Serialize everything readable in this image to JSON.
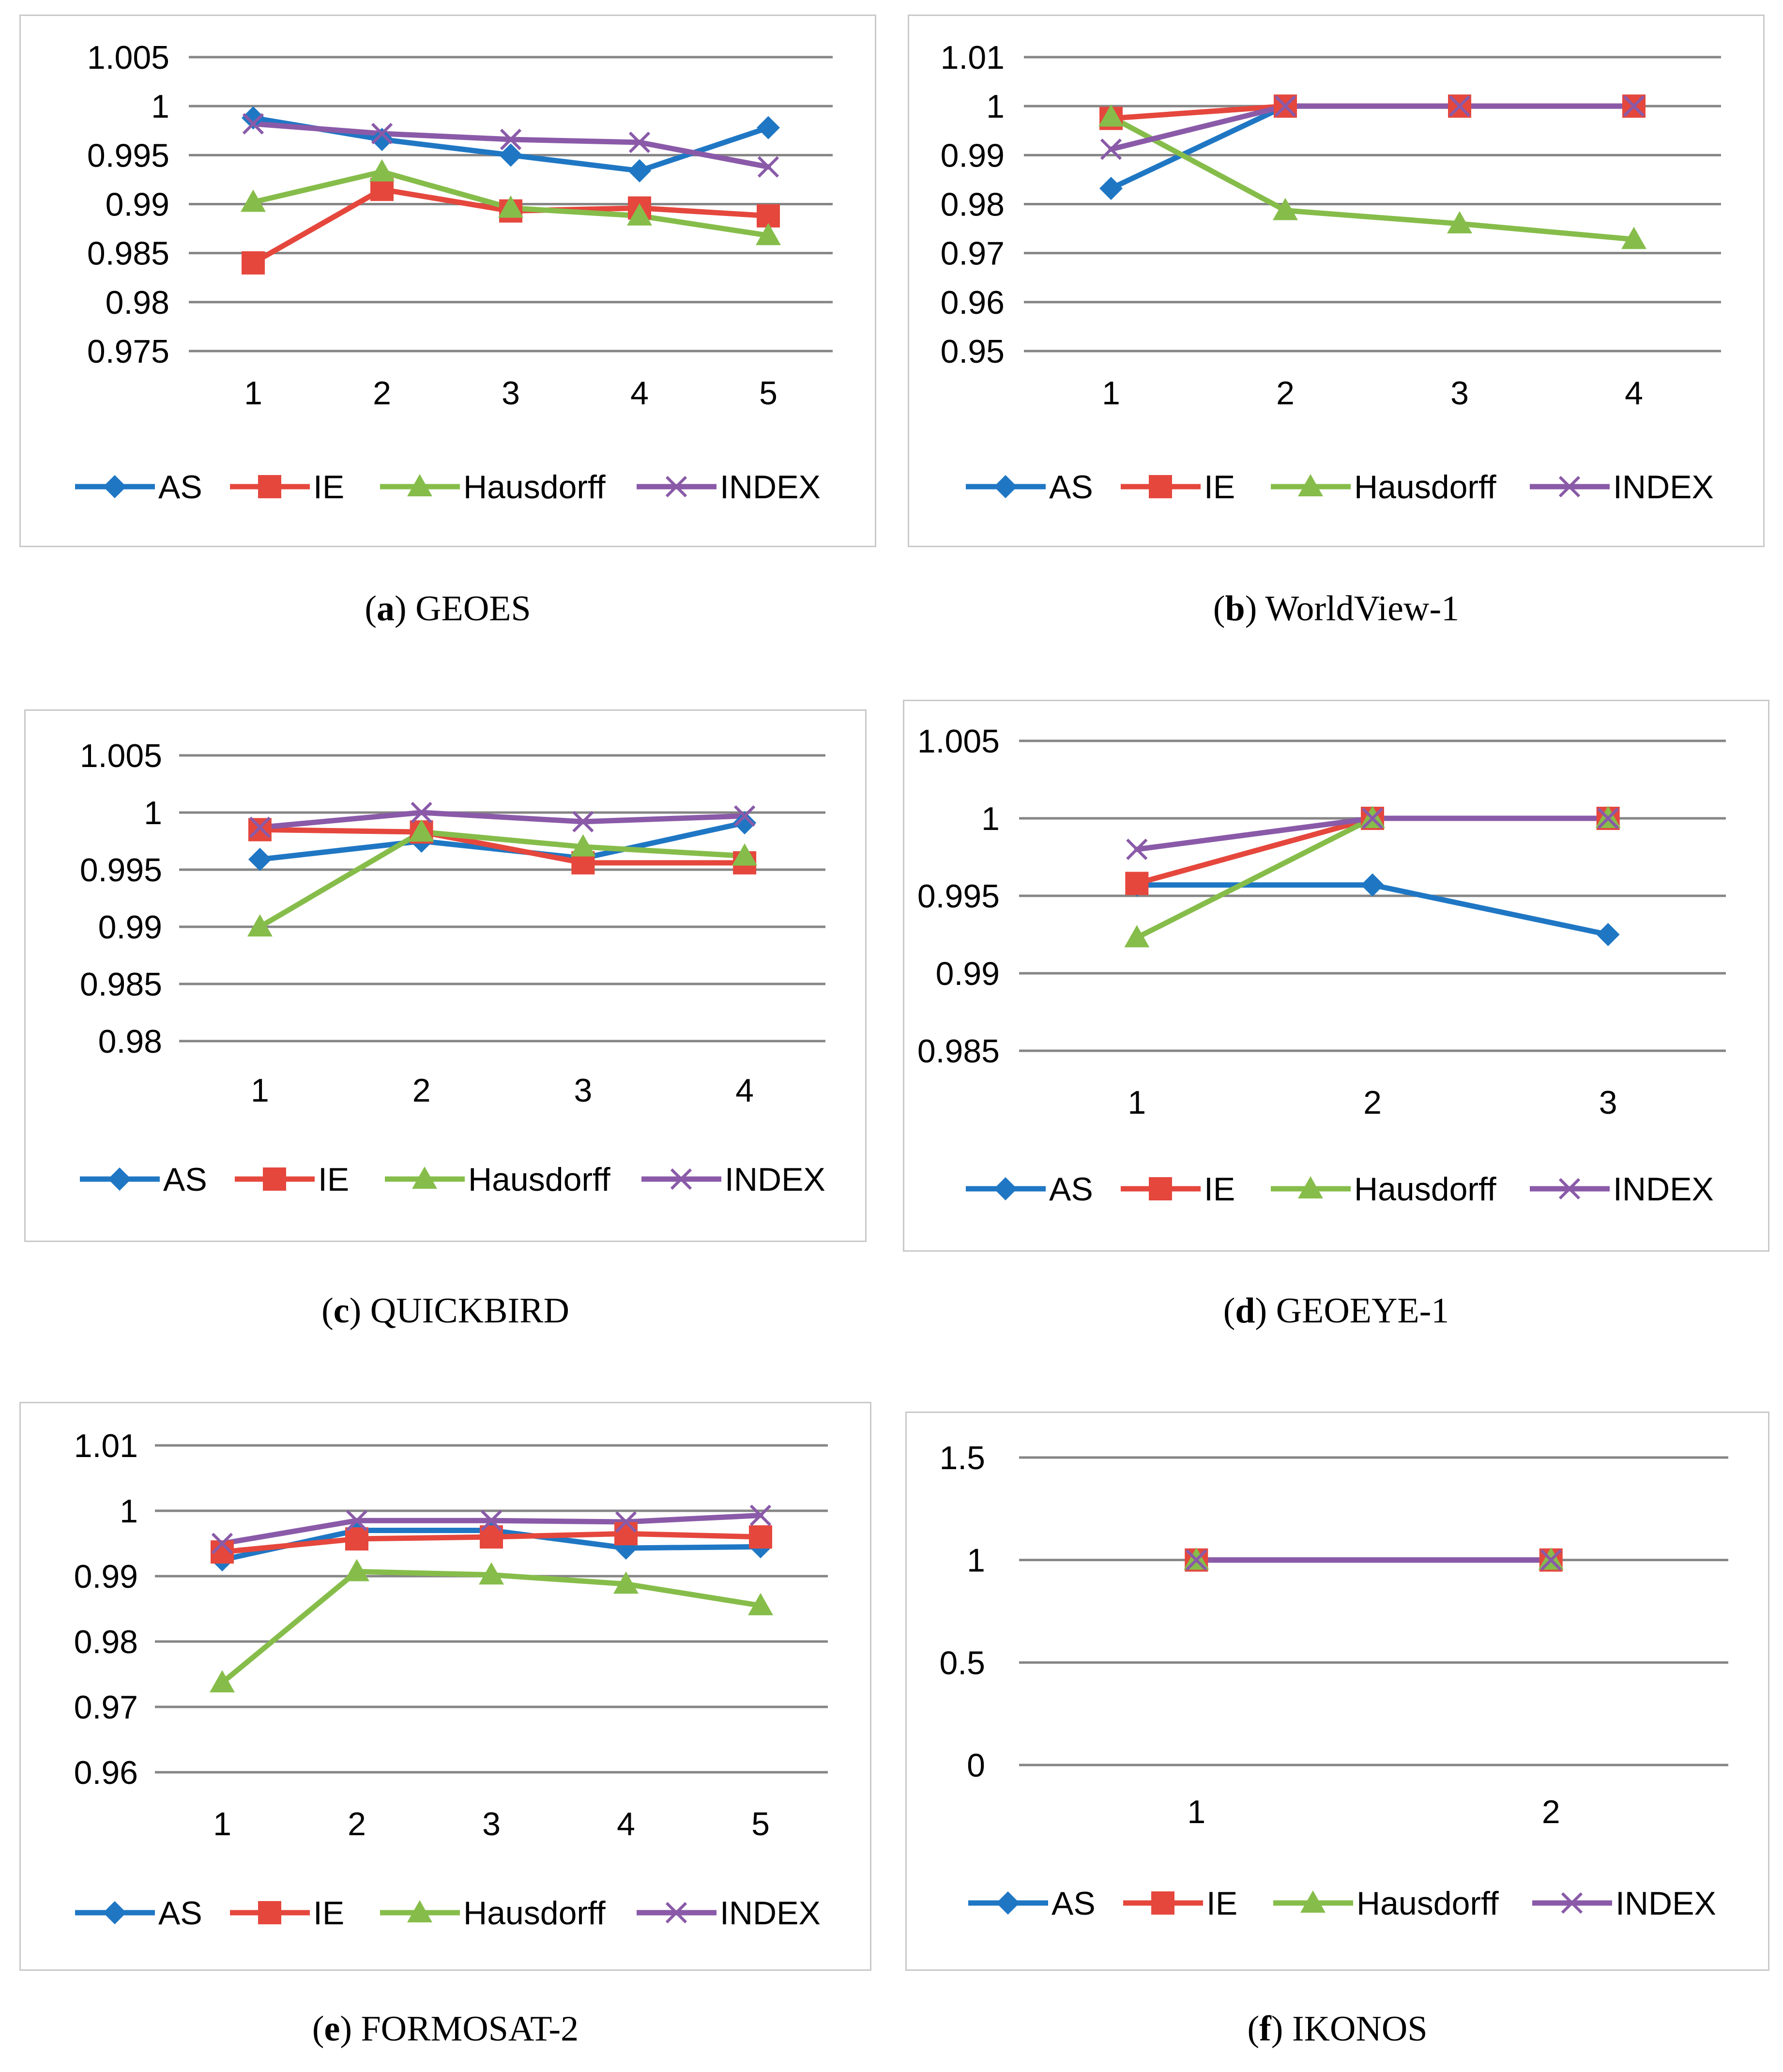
{
  "colors": {
    "AS": "#1f77c4",
    "IE": "#e5473d",
    "Hausdorff": "#86bd4a",
    "INDEX": "#8a5aa8"
  },
  "legend": [
    "AS",
    "IE",
    "Hausdorff",
    "INDEX"
  ],
  "chart_data": [
    {
      "id": "a",
      "type": "line",
      "caption_letter": "a",
      "caption_text": "GEOES",
      "categories": [
        "1",
        "2",
        "3",
        "4",
        "5"
      ],
      "yticks": [
        "1.005",
        "1",
        "0.995",
        "0.99",
        "0.985",
        "0.98",
        "0.975"
      ],
      "ylim": [
        0.975,
        1.005
      ],
      "series": [
        {
          "name": "AS",
          "values": [
            0.9988,
            0.9966,
            0.995,
            0.9934,
            0.9978
          ]
        },
        {
          "name": "IE",
          "values": [
            0.984,
            0.9915,
            0.9893,
            0.9896,
            0.9888
          ]
        },
        {
          "name": "Hausdorff",
          "values": [
            0.9902,
            0.9933,
            0.9896,
            0.9888,
            0.9868
          ]
        },
        {
          "name": "INDEX",
          "values": [
            0.9982,
            0.9972,
            0.9966,
            0.9963,
            0.9938
          ]
        }
      ]
    },
    {
      "id": "b",
      "type": "line",
      "caption_letter": "b",
      "caption_text": "WorldView-1",
      "categories": [
        "1",
        "2",
        "3",
        "4"
      ],
      "yticks": [
        "1.01",
        "1",
        "0.99",
        "0.98",
        "0.97",
        "0.96",
        "0.95"
      ],
      "ylim": [
        0.95,
        1.01
      ],
      "series": [
        {
          "name": "AS",
          "values": [
            0.9832,
            1.0,
            1.0,
            1.0
          ]
        },
        {
          "name": "IE",
          "values": [
            0.9975,
            1.0,
            1.0,
            1.0
          ]
        },
        {
          "name": "Hausdorff",
          "values": [
            0.9978,
            0.9787,
            0.976,
            0.9728
          ]
        },
        {
          "name": "INDEX",
          "values": [
            0.9912,
            1.0,
            1.0,
            1.0
          ]
        }
      ]
    },
    {
      "id": "c",
      "type": "line",
      "caption_letter": "c",
      "caption_text": "QUICKBIRD",
      "categories": [
        "1",
        "2",
        "3",
        "4"
      ],
      "yticks": [
        "1.005",
        "1",
        "0.995",
        "0.99",
        "0.985",
        "0.98"
      ],
      "ylim": [
        0.98,
        1.005
      ],
      "series": [
        {
          "name": "AS",
          "values": [
            0.9959,
            0.9975,
            0.996,
            0.9991
          ]
        },
        {
          "name": "IE",
          "values": [
            0.9985,
            0.9983,
            0.9956,
            0.9956
          ]
        },
        {
          "name": "Hausdorff",
          "values": [
            0.99,
            0.9983,
            0.997,
            0.9962
          ]
        },
        {
          "name": "INDEX",
          "values": [
            0.9987,
            1.0,
            0.9992,
            0.9997
          ]
        }
      ]
    },
    {
      "id": "d",
      "type": "line",
      "caption_letter": "d",
      "caption_text": "GEOEYE-1",
      "categories": [
        "1",
        "2",
        "3"
      ],
      "yticks": [
        "1.005",
        "1",
        "0.995",
        "0.99",
        "0.985"
      ],
      "ylim": [
        0.985,
        1.005
      ],
      "series": [
        {
          "name": "AS",
          "values": [
            0.9957,
            0.9957,
            0.9925
          ]
        },
        {
          "name": "IE",
          "values": [
            0.9958,
            1.0,
            1.0
          ]
        },
        {
          "name": "Hausdorff",
          "values": [
            0.9923,
            1.0,
            1.0
          ]
        },
        {
          "name": "INDEX",
          "values": [
            0.998,
            1.0,
            1.0
          ]
        }
      ]
    },
    {
      "id": "e",
      "type": "line",
      "caption_letter": "e",
      "caption_text": "FORMOSAT-2",
      "categories": [
        "1",
        "2",
        "3",
        "4",
        "5"
      ],
      "yticks": [
        "1.01",
        "1",
        "0.99",
        "0.98",
        "0.97",
        "0.96"
      ],
      "ylim": [
        0.96,
        1.01
      ],
      "series": [
        {
          "name": "AS",
          "values": [
            0.9925,
            0.997,
            0.997,
            0.9943,
            0.9945
          ]
        },
        {
          "name": "IE",
          "values": [
            0.9937,
            0.9957,
            0.996,
            0.9965,
            0.996
          ]
        },
        {
          "name": "Hausdorff",
          "values": [
            0.9737,
            0.9907,
            0.9902,
            0.9888,
            0.9855
          ]
        },
        {
          "name": "INDEX",
          "values": [
            0.995,
            0.9985,
            0.9985,
            0.9983,
            0.9993
          ]
        }
      ]
    },
    {
      "id": "f",
      "type": "line",
      "caption_letter": "f",
      "caption_text": "IKONOS",
      "categories": [
        "1",
        "2"
      ],
      "yticks": [
        "1.5",
        "1",
        "0.5",
        "0"
      ],
      "ylim": [
        0,
        1.5
      ],
      "series": [
        {
          "name": "AS",
          "values": [
            1,
            1
          ]
        },
        {
          "name": "IE",
          "values": [
            1,
            1
          ]
        },
        {
          "name": "Hausdorff",
          "values": [
            1,
            1
          ]
        },
        {
          "name": "INDEX",
          "values": [
            1,
            1
          ]
        }
      ]
    }
  ]
}
